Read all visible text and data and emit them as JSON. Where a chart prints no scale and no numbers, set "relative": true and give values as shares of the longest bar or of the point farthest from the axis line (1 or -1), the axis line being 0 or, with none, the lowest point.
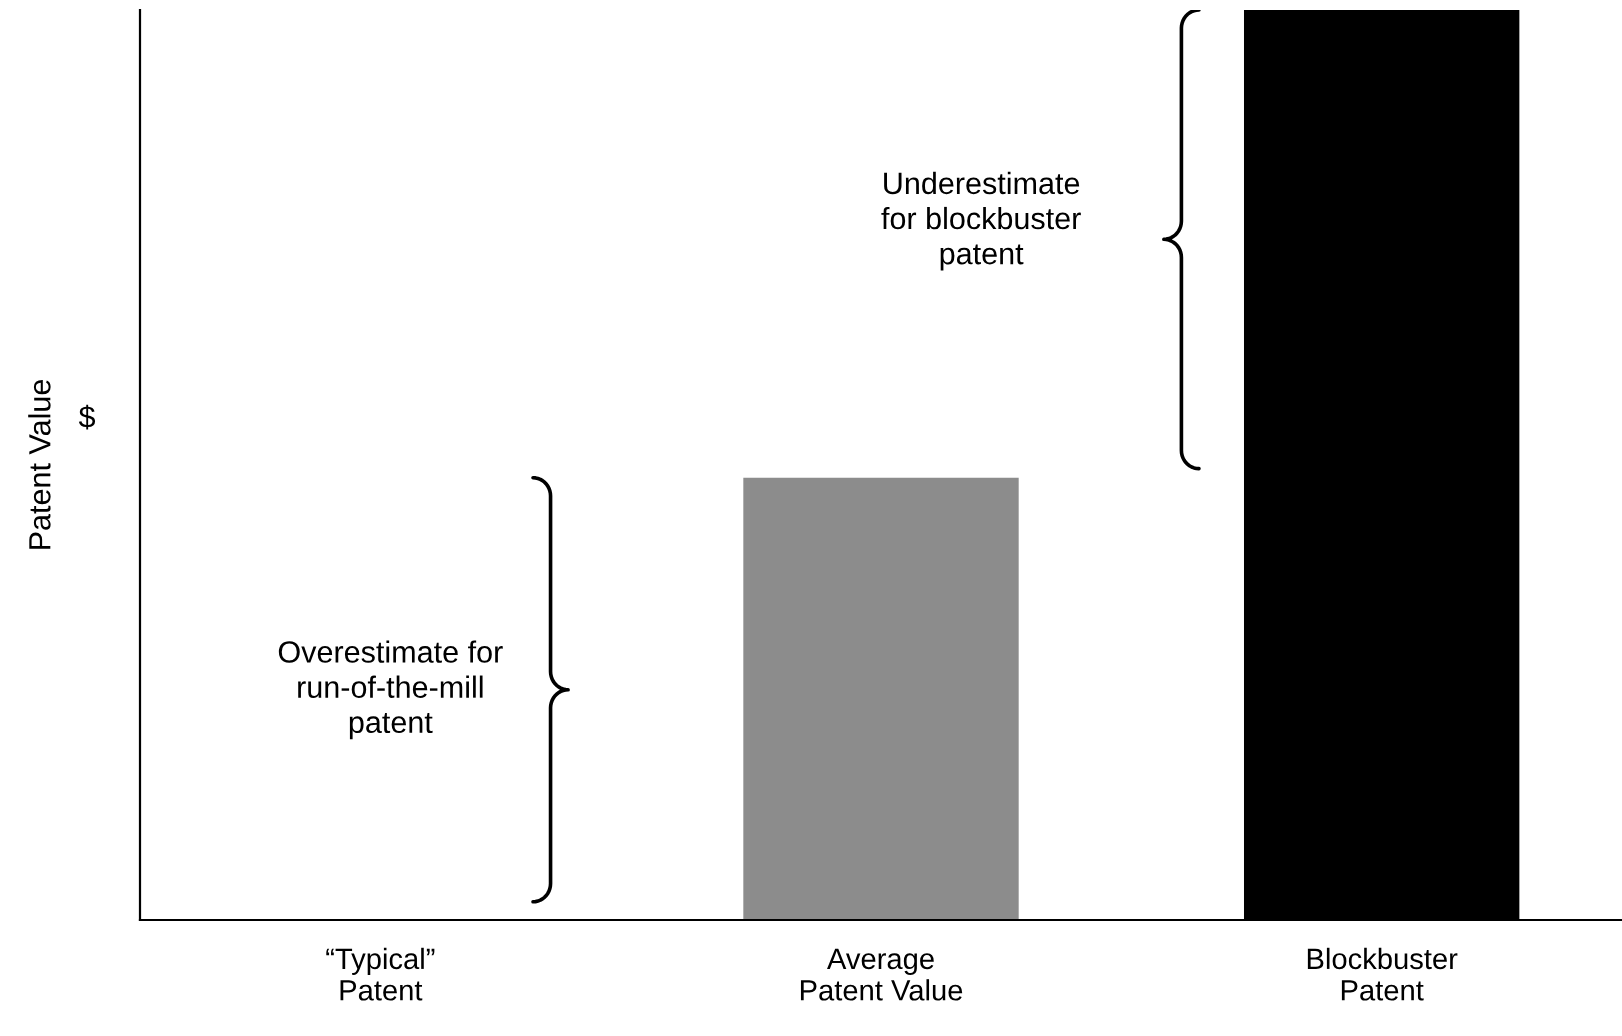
{
  "chart_data": {
    "type": "bar",
    "relative": true,
    "ylabel": "Patent Value",
    "categories": [
      "“Typical”\nPatent",
      "Average\nPatent Value",
      "Blockbuster\nPatent"
    ],
    "values": [
      0,
      0.486,
      1
    ],
    "colors": [
      "#ffffff",
      "#8c8c8c",
      "#000000"
    ],
    "annotations": [
      "$",
      "Overestimate for\nrun-of-the-mill\npatent",
      "Underestimate\nfor blockbuster\npatent"
    ],
    "grid": false,
    "legend": false
  }
}
